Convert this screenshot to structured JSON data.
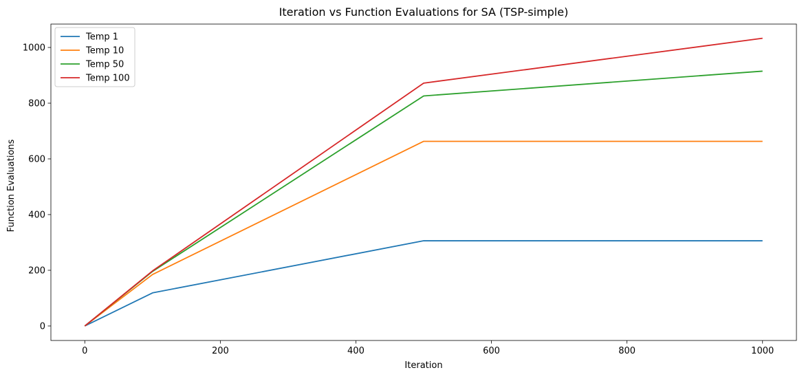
{
  "chart_data": {
    "type": "line",
    "title": "Iteration vs Function Evaluations for SA (TSP-simple)",
    "xlabel": "Iteration",
    "ylabel": "Function Evaluations",
    "xlim": [
      -50,
      1050
    ],
    "ylim": [
      -52,
      1084
    ],
    "xticks": [
      0,
      200,
      400,
      600,
      800,
      1000
    ],
    "yticks": [
      0,
      200,
      400,
      600,
      800,
      1000
    ],
    "grid": false,
    "legend_position": "top-left",
    "x": [
      0,
      100,
      500,
      1000
    ],
    "series": [
      {
        "name": "Temp 1",
        "color": "#1f77b4",
        "values": [
          0,
          119,
          306,
          306
        ]
      },
      {
        "name": "Temp 10",
        "color": "#ff7f0e",
        "values": [
          0,
          185,
          663,
          663
        ]
      },
      {
        "name": "Temp 50",
        "color": "#2ca02c",
        "values": [
          0,
          196,
          826,
          915
        ]
      },
      {
        "name": "Temp 100",
        "color": "#d62728",
        "values": [
          0,
          198,
          872,
          1033
        ]
      }
    ]
  }
}
